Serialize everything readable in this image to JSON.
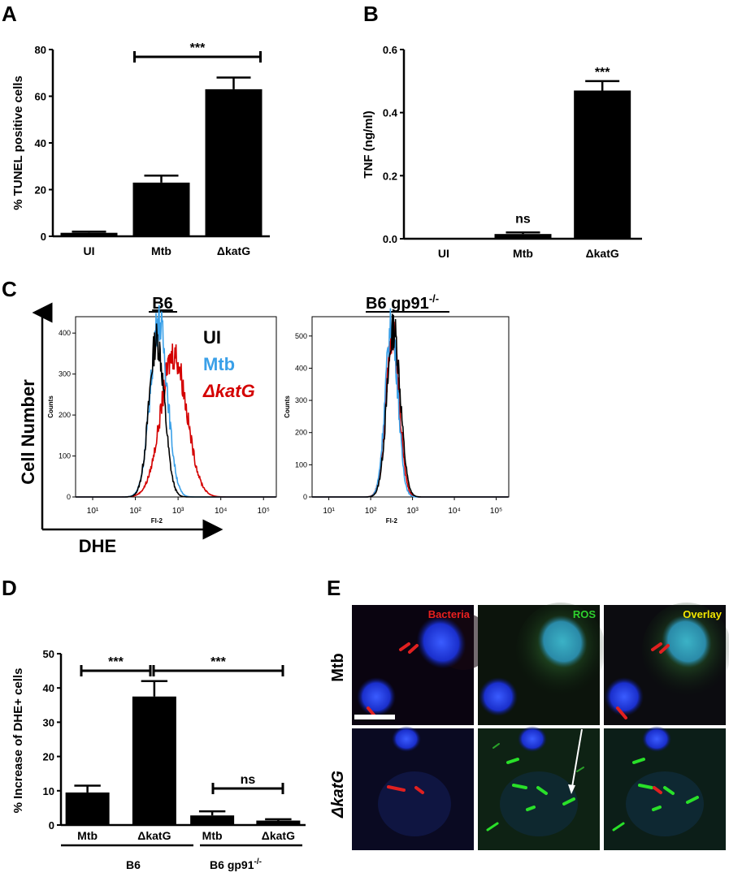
{
  "panels": {
    "A": {
      "letter": "A",
      "ylabel": "% TUNEL positive cells",
      "sig": "***",
      "chart_data": {
        "type": "bar",
        "categories": [
          "UI",
          "Mtb",
          "ΔkatG"
        ],
        "values": [
          1.5,
          23,
          63
        ],
        "errors": [
          0.5,
          3,
          5
        ],
        "ylabel": "% TUNEL positive cells",
        "ylim": [
          0,
          80
        ],
        "yticks": [
          0,
          20,
          40,
          60,
          80
        ],
        "annotations": [
          {
            "text": "***",
            "between": [
              "Mtb",
              "ΔkatG"
            ]
          }
        ]
      }
    },
    "B": {
      "letter": "B",
      "ylabel": "TNF (ng/ml)",
      "sig_ns": "ns",
      "sig_star": "***",
      "chart_data": {
        "type": "bar",
        "categories": [
          "UI",
          "Mtb",
          "ΔkatG"
        ],
        "values": [
          0.0,
          0.015,
          0.47
        ],
        "errors": [
          0,
          0.005,
          0.03
        ],
        "ylabel": "TNF (ng/ml)",
        "ylim": [
          0,
          0.6
        ],
        "yticks": [
          "0.0",
          "0.2",
          "0.4",
          "0.6"
        ],
        "annotations": [
          {
            "text": "ns",
            "on": "Mtb"
          },
          {
            "text": "***",
            "on": "ΔkatG"
          }
        ]
      }
    },
    "C": {
      "letter": "C",
      "ylabel": "Cell Number",
      "xlabel": "DHE",
      "hist1_title": "B6",
      "hist2_title_main": "B6 gp91",
      "hist2_title_sup": "-/-",
      "legend": [
        {
          "label": "UI",
          "color": "#000000"
        },
        {
          "label": "Mtb",
          "color": "#3aa0e8"
        },
        {
          "label": "ΔkatG",
          "color": "#d40000"
        }
      ],
      "chart_data": [
        {
          "type": "line",
          "title": "B6",
          "yticks": [
            0,
            100,
            200,
            300,
            400
          ],
          "ylim": [
            0,
            440
          ],
          "xticks": [
            "10¹",
            "10²",
            "10³",
            "10⁴",
            "10⁵"
          ],
          "xlabel_small": "Fl-2",
          "ylabel_small": "Counts",
          "series": [
            {
              "name": "UI",
              "peak_log": 2.5,
              "width": 0.18,
              "height": 385
            },
            {
              "name": "Mtb",
              "peak_log": 2.55,
              "width": 0.2,
              "height": 430
            },
            {
              "name": "ΔkatG",
              "peak_log": 2.9,
              "width": 0.3,
              "height": 350
            }
          ]
        },
        {
          "type": "line",
          "title": "B6 gp91-/-",
          "yticks": [
            0,
            100,
            200,
            300,
            400,
            500
          ],
          "ylim": [
            0,
            560
          ],
          "xticks": [
            "10¹",
            "10²",
            "10³",
            "10⁴",
            "10⁵"
          ],
          "xlabel_small": "Fl-2",
          "ylabel_small": "Counts",
          "series": [
            {
              "name": "UI",
              "peak_log": 2.55,
              "width": 0.16,
              "height": 520
            },
            {
              "name": "Mtb",
              "peak_log": 2.5,
              "width": 0.15,
              "height": 535
            },
            {
              "name": "ΔkatG",
              "peak_log": 2.52,
              "width": 0.16,
              "height": 500
            }
          ]
        }
      ]
    },
    "D": {
      "letter": "D",
      "ylabel": "% Increase of DHE+ cells",
      "sig1": "***",
      "sig2": "***",
      "sig_ns": "ns",
      "group1": "B6",
      "group2_main": "B6 gp91",
      "group2_sup": "-/-",
      "chart_data": {
        "type": "bar",
        "categories": [
          "Mtb",
          "ΔkatG",
          "Mtb",
          "ΔkatG"
        ],
        "groups": [
          "B6",
          "B6",
          "B6 gp91-/-",
          "B6 gp91-/-"
        ],
        "values": [
          9.5,
          37.5,
          2.8,
          1.3
        ],
        "errors": [
          2,
          4.5,
          1.2,
          0.4
        ],
        "ylabel": "% Increase of DHE+ cells",
        "ylim": [
          0,
          50
        ],
        "yticks": [
          0,
          10,
          20,
          30,
          40,
          50
        ]
      }
    },
    "E": {
      "letter": "E",
      "col_labels": [
        {
          "text": "Bacteria",
          "color": "#e82020"
        },
        {
          "text": "ROS",
          "color": "#2ed12e"
        },
        {
          "text": "Overlay",
          "color": "#f2e600"
        }
      ],
      "row_labels": [
        "Mtb",
        "ΔkatG"
      ]
    }
  }
}
